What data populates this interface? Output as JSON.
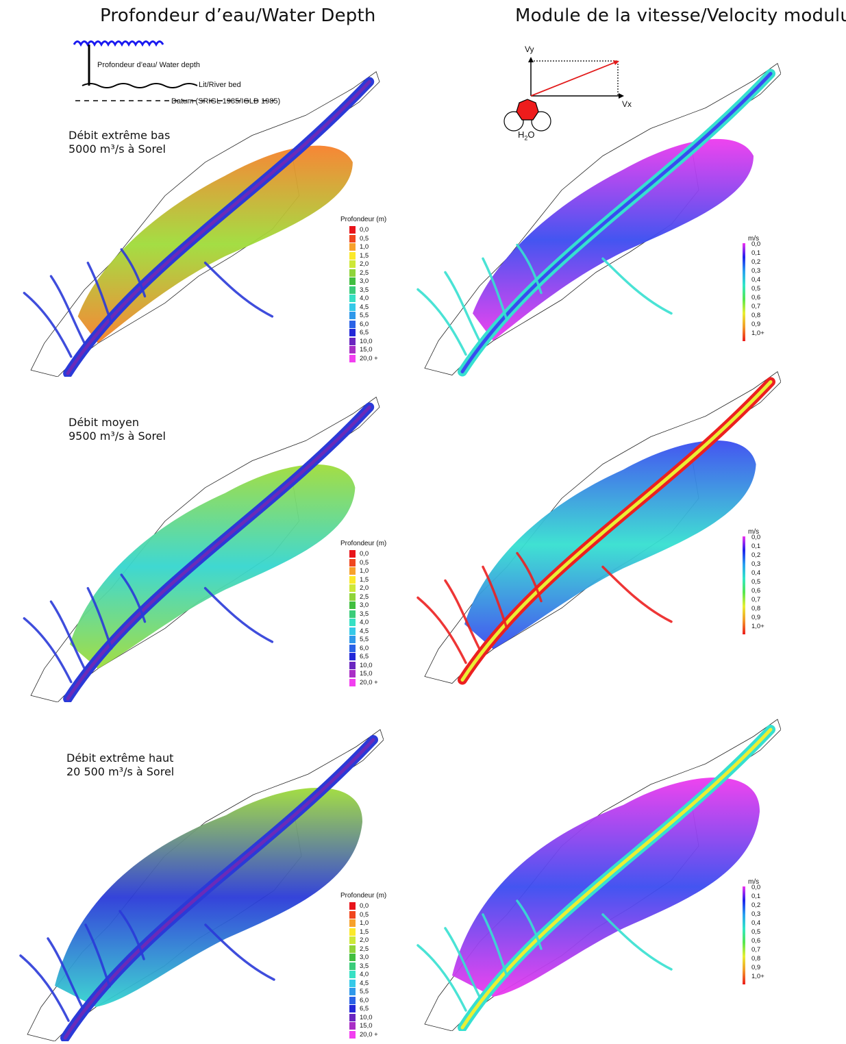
{
  "titles": {
    "left": "Profondeur d’eau/Water Depth",
    "right": "Module de la vitesse/Velocity modulus"
  },
  "depth_schema": {
    "water_depth_label": "Profondeur d’eau/ Water depth",
    "river_bed_label": "Lit/River bed",
    "datum_label": "Datum (SRIGL 1985/IGLD 1985)"
  },
  "velocity_schema": {
    "vy_label": "Vy",
    "vx_label": "Vx",
    "molecule_h": "H",
    "molecule_sub": "2",
    "molecule_o": "O"
  },
  "scenarios": [
    {
      "line1": "Débit extrême bas",
      "line2": "5000 m³/s à Sorel"
    },
    {
      "line1": "Débit moyen",
      "line2": "9500 m³/s à Sorel"
    },
    {
      "line1": "Débit extrême haut",
      "line2": "20 500 m³/s à Sorel"
    }
  ],
  "depth_legend": {
    "title": "Profondeur (m)",
    "items": [
      {
        "label": "0,0",
        "color": "#e8141b"
      },
      {
        "label": "0,5",
        "color": "#f0461e"
      },
      {
        "label": "1,0",
        "color": "#f7a12b"
      },
      {
        "label": "1,5",
        "color": "#fbe92a"
      },
      {
        "label": "2,0",
        "color": "#cde838"
      },
      {
        "label": "2,5",
        "color": "#8fd43a"
      },
      {
        "label": "3,0",
        "color": "#41be40"
      },
      {
        "label": "3,5",
        "color": "#3acc7a"
      },
      {
        "label": "4,0",
        "color": "#36e0c4"
      },
      {
        "label": "4,5",
        "color": "#35c9e8"
      },
      {
        "label": "5,5",
        "color": "#2f98ea"
      },
      {
        "label": "6,0",
        "color": "#2a62e6"
      },
      {
        "label": "6,5",
        "color": "#2227d8"
      },
      {
        "label": "10,0",
        "color": "#6a26c0"
      },
      {
        "label": "15,0",
        "color": "#a92ec6"
      },
      {
        "label": "20,0 +",
        "color": "#f23ff0"
      }
    ]
  },
  "velocity_legend": {
    "title": "m/s",
    "labels": [
      "0,0",
      "0,1",
      "0,2",
      "0,3",
      "0,4",
      "0,5",
      "0,6",
      "0,7",
      "0,8",
      "0,9",
      "1,0+"
    ],
    "colors": [
      "#f030f0",
      "#1e22ee",
      "#2aa0f0",
      "#30e6c8",
      "#56e650",
      "#e8ee30",
      "#f39a2a",
      "#ec1d1d"
    ]
  },
  "map_palette": {
    "outline": "#222222",
    "depth_shallow": "#f7802b",
    "depth_mid": "#9fdc3a",
    "depth_deep": "#35d6cf",
    "depth_channel": "#2a3ad8",
    "depth_channel_deep": "#6a2ab8",
    "vel_slow": "#ee3aee",
    "vel_low": "#3a4cf0",
    "vel_mid": "#36e0d0",
    "vel_fast": "#eaef34",
    "vel_max": "#ec2020"
  }
}
